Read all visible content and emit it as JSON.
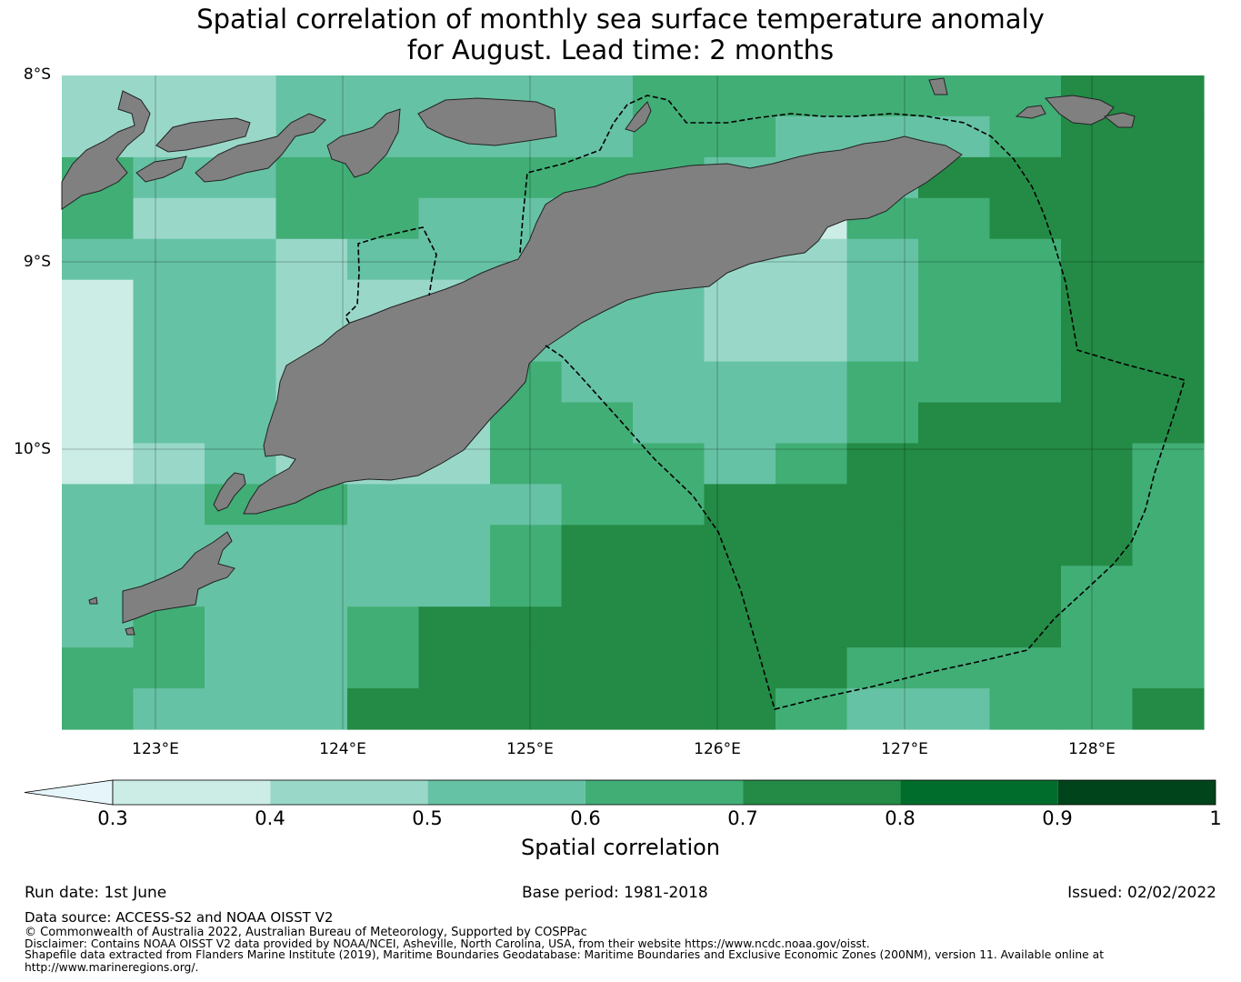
{
  "title": {
    "line1": "Spatial correlation of monthly sea surface temperature anomaly",
    "line2": "for August. Lead time: 2 months"
  },
  "map": {
    "lat_labels": [
      "8°S",
      "9°S",
      "10°S"
    ],
    "lon_labels": [
      "123°E",
      "124°E",
      "125°E",
      "126°E",
      "127°E",
      "128°E"
    ],
    "extent": {
      "lon": [
        122.5,
        128.6
      ],
      "lat": [
        -8.0,
        -11.5
      ]
    },
    "land_color": "#808080",
    "grid": true
  },
  "legend": {
    "label": "Spatial correlation",
    "ticks": [
      "0.3",
      "0.4",
      "0.5",
      "0.6",
      "0.7",
      "0.8",
      "0.9",
      "1"
    ],
    "bins": [
      {
        "range": "<0.3",
        "color": "#e5f5f9"
      },
      {
        "range": "0.3-0.4",
        "color": "#ccece6"
      },
      {
        "range": "0.4-0.5",
        "color": "#99d8c9"
      },
      {
        "range": "0.5-0.6",
        "color": "#66c2a4"
      },
      {
        "range": "0.6-0.7",
        "color": "#41ae76"
      },
      {
        "range": "0.7-0.8",
        "color": "#238b45"
      },
      {
        "range": "0.8-0.9",
        "color": "#006d2c"
      },
      {
        "range": "0.9-1",
        "color": "#00441b"
      }
    ]
  },
  "grid_cells": {
    "rows": [
      "2223333344444455",
      "2223333344333455",
      "4334444443335555",
      "4224433331144555",
      "3332333332234455",
      "1332223332234455",
      "1332223332234455",
      "1332224333344455",
      "1332224433345555",
      "1232224443455554",
      "3344333445555554",
      "3333334555555554",
      "3333334555555544",
      "3433455555555544",
      "4433455555544444",
      "4333555555433445"
    ]
  },
  "footer": {
    "run_date": "Run date: 1st June",
    "base_period": "Base period: 1981-2018",
    "issued": "Issued: 02/02/2022",
    "data_source": "Data source: ACCESS-S2 and NOAA OISST V2",
    "copyright": "© Commonwealth of Australia 2022, Australian Bureau of Meteorology, Supported by COSPPac",
    "disclaimer": "Disclaimer: Contains NOAA OISST V2 data provided by NOAA/NCEI, Asheville, North Carolina, USA, from their website https://www.ncdc.noaa.gov/oisst.",
    "shapefile1": "Shapefile data extracted from Flanders Marine Institute (2019), Maritime Boundaries Geodatabase: Maritime Boundaries and Exclusive Economic Zones (200NM), version 11. Available online at",
    "shapefile2": "http://www.marineregions.org/."
  }
}
